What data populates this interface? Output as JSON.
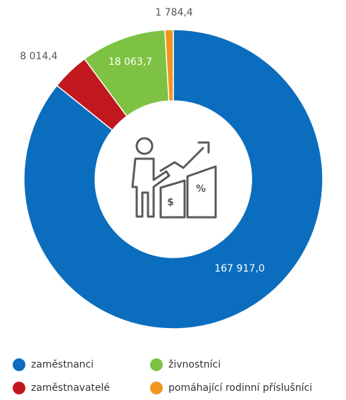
{
  "chart_data": {
    "type": "donut",
    "categories": [
      "zaměstnanci",
      "zaměstnavatelé",
      "živnostníci",
      "pomáhající rodinní příslušníci"
    ],
    "values": [
      167917.0,
      8014.4,
      18063.7,
      1784.4
    ],
    "value_labels": [
      "167 917,0",
      "8 014,4",
      "18 063,7",
      "1 784,4"
    ],
    "colors": [
      "#0b6dbe",
      "#c1171f",
      "#7ec243",
      "#f1961d"
    ]
  }
}
